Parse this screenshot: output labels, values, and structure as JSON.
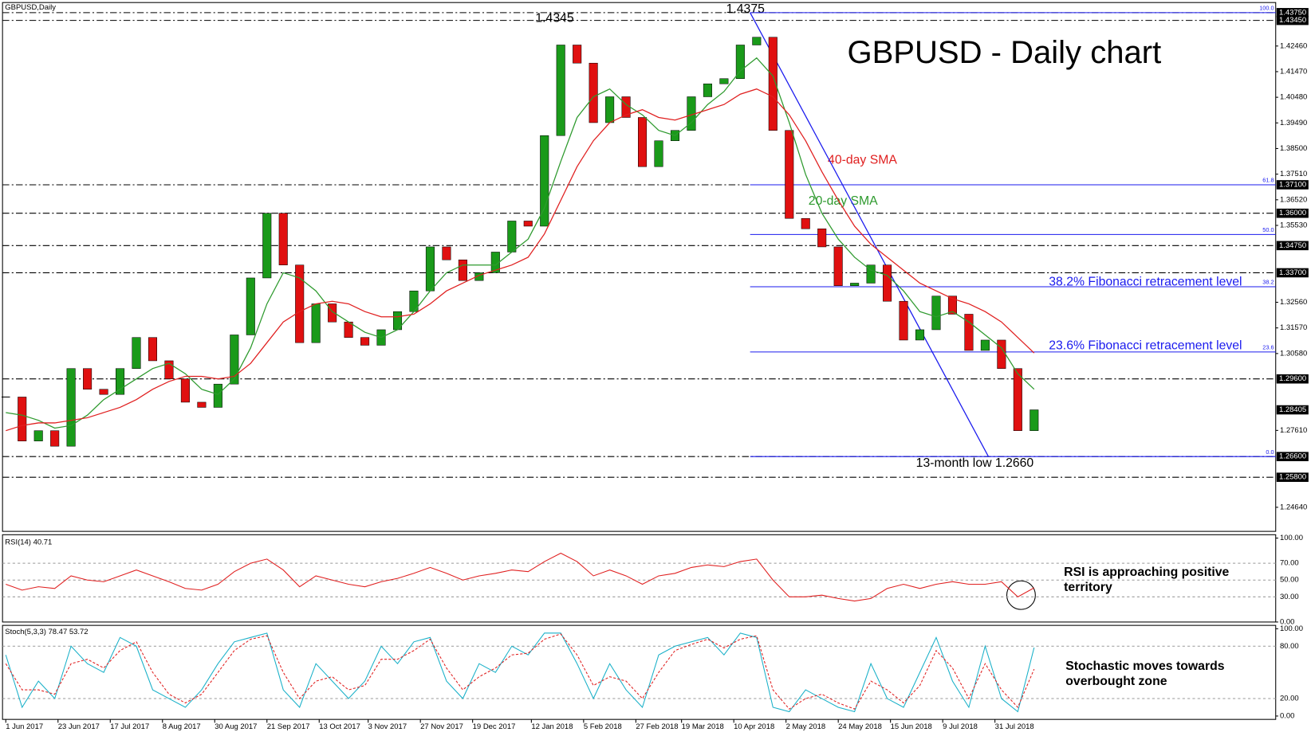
{
  "chart_data": {
    "type": "candlestick",
    "title": "GBPUSD - Daily chart",
    "symbol_label": "GBPUSD,Daily",
    "x": [
      "2017-06-01",
      "2017-06-08",
      "2017-06-15",
      "2017-06-22",
      "2017-06-29",
      "2017-07-06",
      "2017-07-13",
      "2017-07-20",
      "2017-07-27",
      "2017-08-03",
      "2017-08-10",
      "2017-08-17",
      "2017-08-24",
      "2017-08-31",
      "2017-09-07",
      "2017-09-14",
      "2017-09-21",
      "2017-09-28",
      "2017-10-05",
      "2017-10-12",
      "2017-10-19",
      "2017-10-26",
      "2017-11-02",
      "2017-11-09",
      "2017-11-16",
      "2017-11-23",
      "2017-11-30",
      "2017-12-07",
      "2017-12-14",
      "2017-12-21",
      "2017-12-28",
      "2018-01-04",
      "2018-01-11",
      "2018-01-18",
      "2018-01-25",
      "2018-02-01",
      "2018-02-08",
      "2018-02-15",
      "2018-02-22",
      "2018-03-01",
      "2018-03-08",
      "2018-03-15",
      "2018-03-22",
      "2018-03-29",
      "2018-04-05",
      "2018-04-12",
      "2018-04-19",
      "2018-04-26",
      "2018-05-03",
      "2018-05-10",
      "2018-05-17",
      "2018-05-24",
      "2018-05-31",
      "2018-06-07",
      "2018-06-14",
      "2018-06-21",
      "2018-06-28",
      "2018-07-05",
      "2018-07-12",
      "2018-07-19",
      "2018-07-26",
      "2018-08-02",
      "2018-08-09",
      "2018-08-16"
    ],
    "series": [
      {
        "up_color": "#1a9a1a",
        "down_color": "#e01010",
        "values": [
          1.289,
          1.272,
          1.276,
          1.27,
          1.3,
          1.292,
          1.29,
          1.3,
          1.312,
          1.303,
          1.296,
          1.287,
          1.285,
          1.294,
          1.313,
          1.335,
          1.36,
          1.34,
          1.31,
          1.325,
          1.318,
          1.312,
          1.309,
          1.315,
          1.322,
          1.33,
          1.347,
          1.342,
          1.334,
          1.337,
          1.345,
          1.357,
          1.355,
          1.39,
          1.425,
          1.418,
          1.395,
          1.405,
          1.397,
          1.378,
          1.388,
          1.392,
          1.405,
          1.41,
          1.412,
          1.425,
          1.428,
          1.392,
          1.358,
          1.354,
          1.347,
          1.332,
          1.333,
          1.34,
          1.326,
          1.311,
          1.315,
          1.328,
          1.321,
          1.307,
          1.311,
          1.3,
          1.276,
          1.28405
        ]
      },
      {
        "color": "#2e9a2e",
        "values": [
          1.283,
          1.282,
          1.28,
          1.277,
          1.278,
          1.282,
          1.288,
          1.292,
          1.296,
          1.3,
          1.302,
          1.298,
          1.292,
          1.29,
          1.296,
          1.308,
          1.325,
          1.337,
          1.335,
          1.33,
          1.322,
          1.318,
          1.314,
          1.312,
          1.315,
          1.322,
          1.33,
          1.337,
          1.34,
          1.34,
          1.34,
          1.345,
          1.35,
          1.362,
          1.38,
          1.397,
          1.405,
          1.408,
          1.402,
          1.398,
          1.392,
          1.39,
          1.395,
          1.402,
          1.407,
          1.415,
          1.42,
          1.413,
          1.395,
          1.375,
          1.36,
          1.35,
          1.343,
          1.338,
          1.336,
          1.33,
          1.322,
          1.32,
          1.322,
          1.318,
          1.313,
          1.308,
          1.298,
          1.292
        ]
      },
      {
        "color": "#e02020",
        "values": [
          1.276,
          1.278,
          1.279,
          1.279,
          1.28,
          1.281,
          1.283,
          1.285,
          1.288,
          1.292,
          1.295,
          1.297,
          1.297,
          1.296,
          1.297,
          1.302,
          1.31,
          1.318,
          1.322,
          1.325,
          1.326,
          1.325,
          1.322,
          1.32,
          1.32,
          1.321,
          1.325,
          1.33,
          1.333,
          1.336,
          1.338,
          1.34,
          1.343,
          1.352,
          1.365,
          1.378,
          1.388,
          1.395,
          1.398,
          1.4,
          1.397,
          1.396,
          1.398,
          1.4,
          1.402,
          1.406,
          1.408,
          1.405,
          1.398,
          1.388,
          1.376,
          1.365,
          1.355,
          1.348,
          1.343,
          1.338,
          1.333,
          1.33,
          1.327,
          1.325,
          1.322,
          1.318,
          1.312,
          1.306
        ]
      }
    ],
    "xlim": [
      "2017-05-31",
      "2018-11-28"
    ],
    "xticks": [
      {
        "value": "2017-06-01",
        "label": "1 Jun 2017"
      },
      {
        "value": "2017-06-23",
        "label": "23 Jun 2017"
      },
      {
        "value": "2017-07-17",
        "label": "17 Jul 2017"
      },
      {
        "value": "2017-08-08",
        "label": "8 Aug 2017"
      },
      {
        "value": "2017-08-30",
        "label": "30 Aug 2017"
      },
      {
        "value": "2017-09-21",
        "label": "21 Sep 2017"
      },
      {
        "value": "2017-10-13",
        "label": "13 Oct 2017"
      },
      {
        "value": "2017-11-03",
        "label": "3 Nov 2017"
      },
      {
        "value": "2017-11-27",
        "label": "27 Nov 2017"
      },
      {
        "value": "2017-12-19",
        "label": "19 Dec 2017"
      },
      {
        "value": "2018-01-12",
        "label": "12 Jan 2018"
      },
      {
        "value": "2018-02-05",
        "label": "5 Feb 2018"
      },
      {
        "value": "2018-02-27",
        "label": "27 Feb 2018"
      },
      {
        "value": "2018-03-19",
        "label": "19 Mar 2018"
      },
      {
        "value": "2018-04-10",
        "label": "10 Apr 2018"
      },
      {
        "value": "2018-05-02",
        "label": "2 May 2018"
      },
      {
        "value": "2018-05-24",
        "label": "24 May 2018"
      },
      {
        "value": "2018-06-15",
        "label": "15 Jun 2018"
      },
      {
        "value": "2018-07-09",
        "label": "9 Jul 2018"
      },
      {
        "value": "2018-07-31",
        "label": "31 Jul 2018"
      }
    ],
    "ylim": [
      1.2371,
      1.4414
    ],
    "yticks": [
      {
        "value": 1.4246,
        "label": "1.42460"
      },
      {
        "value": 1.4147,
        "label": "1.41470"
      },
      {
        "value": 1.4048,
        "label": "1.40480"
      },
      {
        "value": 1.3949,
        "label": "1.39490"
      },
      {
        "value": 1.385,
        "label": "1.38500"
      },
      {
        "value": 1.3751,
        "label": "1.37510"
      },
      {
        "value": 1.3652,
        "label": "1.36520"
      },
      {
        "value": 1.3553,
        "label": "1.35530"
      },
      {
        "value": 1.3256,
        "label": "1.32560"
      },
      {
        "value": 1.3157,
        "label": "1.31570"
      },
      {
        "value": 1.3058,
        "label": "1.30580"
      },
      {
        "value": 1.2761,
        "label": "1.27610"
      },
      {
        "value": 1.2464,
        "label": "1.24640"
      }
    ],
    "levels": [
      {
        "value": 1.4375,
        "label": "1.43750"
      },
      {
        "value": 1.4345,
        "label": "1.43450"
      },
      {
        "value": 1.371,
        "label": "1.37100"
      },
      {
        "value": 1.36,
        "label": "1.36000"
      },
      {
        "value": 1.3475,
        "label": "1.34750"
      },
      {
        "value": 1.337,
        "label": "1.33700"
      },
      {
        "value": 1.296,
        "label": "1.29600"
      },
      {
        "value": 1.266,
        "label": "1.26600"
      },
      {
        "value": 1.258,
        "label": "1.25800"
      }
    ],
    "last_price": {
      "value": 1.28405,
      "label": "1.28405"
    },
    "fibonacci": {
      "start": "2018-04-17",
      "color": "#1a1aee",
      "levels": [
        {
          "label": "100.0",
          "price": 1.4375
        },
        {
          "label": "61.8",
          "price": 1.371
        },
        {
          "label": "50.0",
          "price": 1.3518
        },
        {
          "label": "38.2",
          "price": 1.3316
        },
        {
          "label": "23.6",
          "price": 1.3064
        },
        {
          "label": "0.0",
          "price": 1.266
        }
      ]
    },
    "trendline": {
      "x": [
        "2018-04-17",
        "2018-07-27"
      ],
      "y": [
        1.4375,
        1.266
      ],
      "color": "#1a1aee"
    },
    "annotations": {
      "high_jan": "1.4345",
      "high_apr": "1.4375",
      "sma40": "40-day SMA",
      "sma20": "20-day SMA",
      "fib382": "38.2% Fibonacci retracement level",
      "fib236": "23.6% Fibonacci retracement level",
      "low": "13-month low 1.2660"
    },
    "rsi": {
      "title": "RSI(14) 40.71",
      "color": "#e02020",
      "ylim": [
        0,
        100
      ],
      "yticks": [
        {
          "value": 100,
          "label": "100.00"
        },
        {
          "value": 70,
          "label": "70.00"
        },
        {
          "value": 50,
          "label": "50.00"
        },
        {
          "value": 30,
          "label": "30.00"
        },
        {
          "value": 0,
          "label": "0.00"
        }
      ],
      "values": [
        45,
        38,
        42,
        40,
        55,
        50,
        48,
        55,
        62,
        55,
        48,
        40,
        38,
        45,
        60,
        70,
        75,
        62,
        42,
        55,
        50,
        45,
        42,
        48,
        52,
        58,
        65,
        58,
        50,
        55,
        58,
        62,
        60,
        72,
        82,
        72,
        55,
        62,
        55,
        45,
        55,
        58,
        65,
        68,
        66,
        72,
        75,
        50,
        30,
        30,
        32,
        28,
        25,
        28,
        40,
        45,
        40,
        45,
        48,
        45,
        45,
        48,
        30,
        40.71
      ],
      "note": [
        "RSI is approaching positive",
        "territory"
      ]
    },
    "stoch": {
      "title": "Stoch(5,3,3) 78.47 53.72",
      "ylim": [
        0,
        100
      ],
      "yticks": [
        {
          "value": 100,
          "label": "100.00"
        },
        {
          "value": 80,
          "label": "80.00"
        },
        {
          "value": 20,
          "label": "20.00"
        },
        {
          "value": 0,
          "label": "0.00"
        }
      ],
      "series": [
        {
          "color": "#18b0c8",
          "values": [
            70,
            10,
            40,
            20,
            80,
            60,
            50,
            90,
            80,
            30,
            20,
            10,
            30,
            60,
            85,
            90,
            95,
            30,
            10,
            60,
            40,
            20,
            40,
            80,
            60,
            85,
            90,
            40,
            20,
            60,
            50,
            80,
            70,
            95,
            95,
            60,
            20,
            60,
            30,
            10,
            70,
            80,
            85,
            90,
            70,
            95,
            90,
            10,
            5,
            30,
            20,
            10,
            5,
            60,
            20,
            10,
            50,
            90,
            40,
            10,
            80,
            20,
            5,
            78.47
          ]
        },
        {
          "color": "#e02020",
          "values": [
            60,
            30,
            30,
            25,
            60,
            65,
            55,
            75,
            85,
            50,
            25,
            15,
            25,
            50,
            75,
            88,
            92,
            50,
            20,
            40,
            45,
            30,
            35,
            65,
            65,
            75,
            88,
            55,
            30,
            45,
            55,
            70,
            72,
            88,
            94,
            70,
            35,
            45,
            40,
            20,
            50,
            75,
            82,
            88,
            78,
            88,
            92,
            30,
            8,
            20,
            25,
            15,
            8,
            40,
            30,
            15,
            35,
            75,
            55,
            20,
            60,
            30,
            10,
            53.72
          ]
        }
      ],
      "note": [
        "Stochastic moves towards",
        "overbought zone"
      ]
    }
  }
}
